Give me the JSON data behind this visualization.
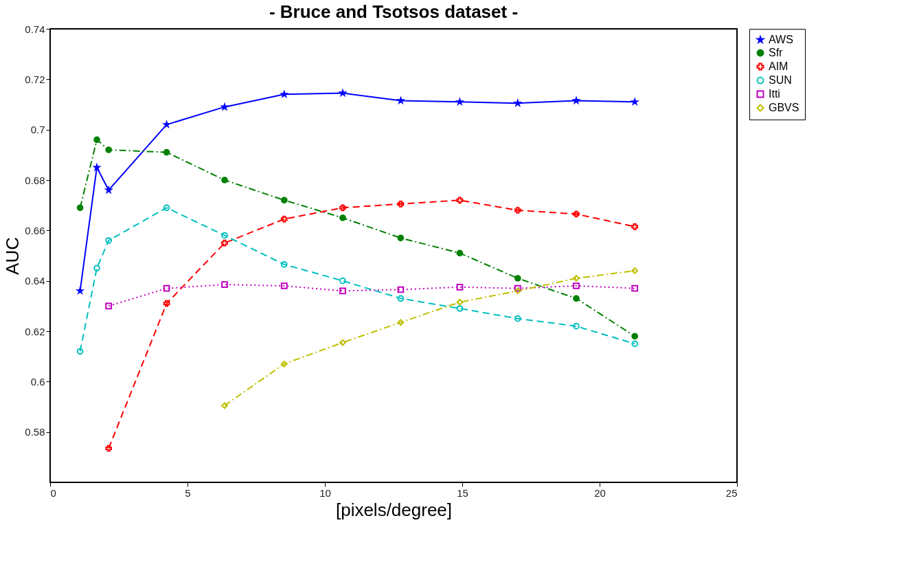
{
  "chart_data": {
    "type": "line",
    "title": "- Bruce and Tsotsos dataset -",
    "xlabel": "[pixels/degree]",
    "ylabel": "AUC",
    "xlim": [
      0,
      25
    ],
    "xticks": [
      0,
      5,
      10,
      15,
      20,
      25
    ],
    "ylim": [
      0.56,
      0.74
    ],
    "yticks": [
      0.58,
      {
        "value": 0.6,
        "label": "0.6"
      },
      0.62,
      0.64,
      0.66,
      0.68,
      {
        "value": 0.7,
        "label": "0.7"
      },
      0.72,
      0.74
    ],
    "grid": false,
    "legend": "top right",
    "series": [
      {
        "name": "AWS",
        "color": "#0000ff",
        "marker": "star",
        "line_style": "solid",
        "x": [
          1.09,
          1.7,
          2.13,
          4.24,
          6.35,
          8.52,
          10.65,
          12.76,
          14.91,
          17.02,
          19.15,
          21.28
        ],
        "values": [
          0.636,
          0.685,
          0.676,
          0.702,
          0.709,
          0.714,
          0.7145,
          0.7115,
          0.711,
          0.7105,
          0.7115,
          0.711
        ]
      },
      {
        "name": "Sfr",
        "color": "#008000",
        "marker": "circle",
        "line_style": "dashdot",
        "x": [
          1.09,
          1.7,
          2.13,
          4.24,
          6.35,
          8.52,
          10.65,
          12.76,
          14.91,
          17.02,
          19.15,
          21.28
        ],
        "values": [
          0.669,
          0.696,
          0.692,
          0.691,
          0.68,
          0.672,
          0.665,
          0.657,
          0.651,
          0.641,
          0.633,
          0.618
        ]
      },
      {
        "name": "AIM",
        "color": "#ff0000",
        "marker": "cross",
        "line_style": "dashed",
        "x": [
          2.13,
          4.24,
          6.35,
          8.52,
          10.65,
          12.76,
          14.91,
          17.02,
          19.15,
          21.28
        ],
        "values": [
          0.5735,
          0.631,
          0.655,
          0.6645,
          0.669,
          0.6705,
          0.672,
          0.668,
          0.6665,
          0.6615
        ]
      },
      {
        "name": "SUN",
        "color": "#00bfbf",
        "marker": "circle",
        "line_style": "dashed",
        "x": [
          1.09,
          1.7,
          2.13,
          4.24,
          6.35,
          8.52,
          10.65,
          12.76,
          14.91,
          17.02,
          19.15,
          21.28
        ],
        "values": [
          0.612,
          0.645,
          0.656,
          0.669,
          0.658,
          0.6465,
          0.64,
          0.633,
          0.629,
          0.625,
          0.622,
          0.615
        ]
      },
      {
        "name": "Itti",
        "color": "#bf00bf",
        "marker": "square",
        "line_style": "dotted",
        "x": [
          2.13,
          4.24,
          6.35,
          8.52,
          10.65,
          12.76,
          14.91,
          17.02,
          19.15,
          21.28
        ],
        "values": [
          0.63,
          0.637,
          0.6385,
          0.638,
          0.636,
          0.6365,
          0.6375,
          0.637,
          0.638,
          0.637
        ]
      },
      {
        "name": "GBVS",
        "color": "#bfbf00",
        "marker": "diamond",
        "line_style": "dashdot",
        "x": [
          6.35,
          8.52,
          10.65,
          12.76,
          14.91,
          17.02,
          19.15,
          21.28
        ],
        "values": [
          0.5905,
          0.607,
          0.6155,
          0.6235,
          0.6315,
          0.636,
          0.641,
          0.644
        ]
      }
    ]
  }
}
